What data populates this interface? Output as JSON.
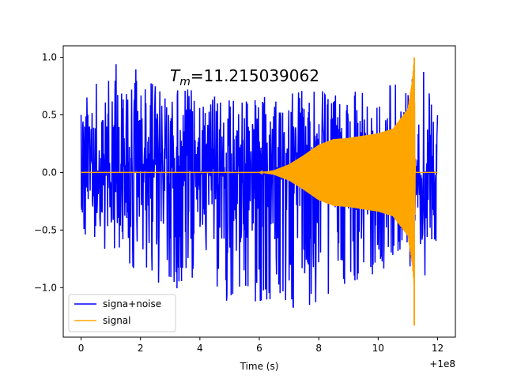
{
  "chart_data": {
    "type": "line",
    "title": "",
    "annotation": {
      "symbol": "T",
      "subscript": "m",
      "value_text": "=11.215039062"
    },
    "xlabel": "Time (s)",
    "ylabel": "",
    "x_offset_label": "+1e8",
    "xlim": [
      -0.6,
      12.6
    ],
    "ylim": [
      -1.43,
      1.1
    ],
    "x_ticks": [
      0,
      2,
      4,
      6,
      8,
      10,
      12
    ],
    "x_tick_labels": [
      "0",
      "2",
      "4",
      "6",
      "8",
      "10",
      "12"
    ],
    "y_ticks": [
      -1.0,
      -0.5,
      0.0,
      0.5,
      1.0
    ],
    "y_tick_labels": [
      "−1.0",
      "−0.5",
      "0.0",
      "0.5",
      "1.0"
    ],
    "grid": false,
    "legend_position": "lower-left",
    "series": [
      {
        "name": "signa+noise",
        "color": "#0000ff",
        "description_points": {
          "x": [
            0,
            1.25,
            3.0,
            3.6,
            4.0,
            7.0,
            10.8,
            11.6,
            12.0
          ],
          "y_upper": [
            0.62,
            1.0,
            0.72,
            0.82,
            0.68,
            0.7,
            0.78,
            0.98,
            0.6
          ],
          "y_lower": [
            -0.6,
            -0.75,
            -1.1,
            -0.9,
            -1.07,
            -1.24,
            -0.8,
            -0.92,
            -0.6
          ]
        },
        "x_range": [
          0,
          12.0
        ]
      },
      {
        "name": "signal",
        "color": "#ffa500",
        "envelope": {
          "x": [
            0,
            6.0,
            6.5,
            7.0,
            7.5,
            8.0,
            8.5,
            9.0,
            10.0,
            10.5,
            11.0,
            11.15,
            11.215,
            11.25,
            12.0
          ],
          "y": [
            0.0,
            0.0,
            0.02,
            0.07,
            0.15,
            0.24,
            0.29,
            0.3,
            0.34,
            0.38,
            0.55,
            0.8,
            1.0,
            0.0,
            0.0
          ]
        },
        "peak": {
          "x": 11.215,
          "y_max": 1.0,
          "y_min": -1.33
        },
        "x_range": [
          0,
          12.0
        ]
      }
    ]
  }
}
